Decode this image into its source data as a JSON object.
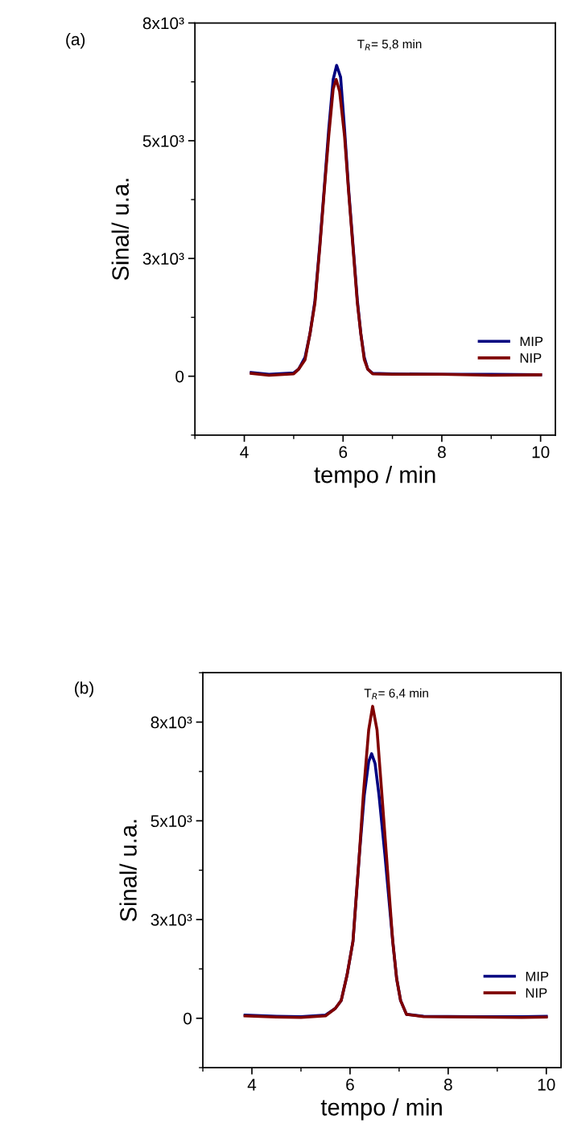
{
  "chart_data": [
    {
      "type": "line",
      "title": "(a)",
      "xlabel": "tempo / min",
      "ylabel": "Sinal/ u.a.",
      "annotations": [
        "T$_{R}$= 5,8 min"
      ],
      "xlim": [
        3,
        10.3
      ],
      "xticks": [
        4,
        6,
        8,
        10
      ],
      "ylim": [
        -1250,
        7500
      ],
      "yticks": [
        0,
        {
          "value": 2500,
          "label": "3x10³"
        },
        {
          "value": 5000,
          "label": "5x10³"
        },
        {
          "value": 7500,
          "label": "8x10³"
        }
      ],
      "legend": "bottom right",
      "grid": false,
      "line_style": "solid",
      "marker": "none",
      "series": [
        {
          "name": "MIP",
          "color": "#000080",
          "x": [
            4.14,
            4.5,
            5.0,
            5.1,
            5.23,
            5.33,
            5.43,
            5.53,
            5.62,
            5.71,
            5.8,
            5.87,
            5.95,
            6.03,
            6.11,
            6.2,
            6.29,
            6.36,
            6.43,
            6.5,
            6.6,
            7,
            8,
            9,
            10
          ],
          "values": [
            80,
            40,
            70,
            150,
            400,
            900,
            1600,
            2800,
            4000,
            5250,
            6300,
            6600,
            6350,
            5250,
            4000,
            2800,
            1600,
            900,
            400,
            150,
            60,
            50,
            40,
            40,
            30
          ]
        },
        {
          "name": "NIP",
          "color": "#800000",
          "x": [
            4.14,
            4.5,
            5.0,
            5.1,
            5.23,
            5.33,
            5.43,
            5.53,
            5.62,
            5.71,
            5.8,
            5.86,
            5.93,
            6.03,
            6.11,
            6.2,
            6.29,
            6.36,
            6.43,
            6.5,
            6.6,
            7,
            8,
            9,
            10
          ],
          "values": [
            60,
            20,
            50,
            150,
            350,
            900,
            1550,
            2750,
            3950,
            5100,
            6100,
            6300,
            6050,
            5100,
            3950,
            2750,
            1550,
            900,
            350,
            150,
            50,
            40,
            40,
            20,
            30
          ]
        }
      ]
    },
    {
      "type": "line",
      "title": "(b)",
      "xlabel": "tempo / min",
      "ylabel": "Sinal/ u.a.",
      "annotations": [
        "T$_{R}$= 6,4 min"
      ],
      "xlim": [
        3,
        10.3
      ],
      "xticks": [
        4,
        6,
        8,
        10
      ],
      "ylim": [
        -1250,
        8750
      ],
      "yticks": [
        0,
        {
          "value": 2500,
          "label": "3x10³"
        },
        {
          "value": 5000,
          "label": "5x10³"
        },
        {
          "value": 7500,
          "label": "8x10³"
        }
      ],
      "legend": "bottom right",
      "grid": false,
      "line_style": "solid",
      "marker": "none",
      "series": [
        {
          "name": "MIP",
          "color": "#000080",
          "x": [
            3.86,
            4.5,
            5.0,
            5.5,
            5.7,
            5.82,
            5.94,
            6.06,
            6.19,
            6.29,
            6.38,
            6.44,
            6.51,
            6.59,
            6.71,
            6.87,
            6.95,
            7.03,
            7.15,
            7.5,
            8.5,
            9.5,
            10
          ],
          "values": [
            80,
            50,
            40,
            80,
            250,
            450,
            1100,
            1950,
            4150,
            5650,
            6500,
            6700,
            6450,
            5650,
            4150,
            1950,
            1000,
            450,
            100,
            50,
            40,
            40,
            50
          ]
        },
        {
          "name": "NIP",
          "color": "#800000",
          "x": [
            3.86,
            4.5,
            5.0,
            5.5,
            5.7,
            5.82,
            5.94,
            6.06,
            6.19,
            6.27,
            6.38,
            6.46,
            6.55,
            6.65,
            6.74,
            6.87,
            6.95,
            7.03,
            7.15,
            7.5,
            8.5,
            9.5,
            10
          ],
          "values": [
            60,
            30,
            20,
            60,
            250,
            450,
            1100,
            1950,
            4150,
            5650,
            7300,
            7900,
            7300,
            5650,
            4150,
            1950,
            1000,
            450,
            100,
            40,
            30,
            20,
            30
          ]
        }
      ]
    }
  ]
}
